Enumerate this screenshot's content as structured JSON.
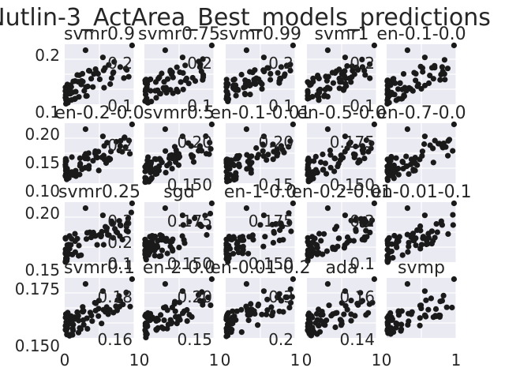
{
  "title": "Nutlin-3_ActArea_Best_models_predictions",
  "chart_data": {
    "type": "scatter",
    "title": "Nutlin-3_ActArea_Best_models_predictions",
    "grid": true,
    "x_ticks": [
      "0",
      "1"
    ],
    "panels": [
      {
        "title": "svmr0.9",
        "xlim": [
          0,
          1
        ],
        "ylim": [
          0.07,
          0.27
        ],
        "y_ticks_left": [
          "0.2",
          "0.1"
        ],
        "y_ticks_right": [
          "0.2",
          "0.1"
        ]
      },
      {
        "title": "svmr0.75",
        "xlim": [
          0,
          1
        ],
        "ylim": [
          0.07,
          0.27
        ],
        "y_ticks_left": [],
        "y_ticks_right": [
          "0.2",
          "0.1"
        ]
      },
      {
        "title": "svmr0.99",
        "xlim": [
          0,
          1
        ],
        "ylim": [
          0.07,
          0.27
        ],
        "y_ticks_left": [],
        "y_ticks_right": [
          "0.2",
          "0.1"
        ]
      },
      {
        "title": "svmr1",
        "xlim": [
          0,
          1
        ],
        "ylim": [
          0.07,
          0.27
        ],
        "y_ticks_left": [],
        "y_ticks_right": [
          "0.2",
          "0.1"
        ]
      },
      {
        "title": "en-0.1-0.0",
        "xlim": [
          0,
          1
        ],
        "ylim": [
          0.07,
          0.27
        ],
        "y_ticks_left": [],
        "y_ticks_right": []
      },
      {
        "title": "en-0.2-0.0",
        "xlim": [
          0,
          1
        ],
        "ylim": [
          0.1,
          0.225
        ],
        "y_ticks_left": [
          "0.20",
          "0.15",
          "0.10"
        ],
        "y_ticks_right": [
          "0.2"
        ]
      },
      {
        "title": "svmr0.5",
        "xlim": [
          0,
          1
        ],
        "ylim": [
          0.1,
          0.225
        ],
        "y_ticks_left": [],
        "y_ticks_right": [
          "0.20",
          "0.150"
        ]
      },
      {
        "title": "en-0.1-0.01",
        "xlim": [
          0,
          1
        ],
        "ylim": [
          0.1,
          0.225
        ],
        "y_ticks_left": [],
        "y_ticks_right": [
          "0.20",
          "0.15"
        ]
      },
      {
        "title": "en-0.5-0.0",
        "xlim": [
          0,
          1
        ],
        "ylim": [
          0.1,
          0.225
        ],
        "y_ticks_left": [],
        "y_ticks_right": [
          "0.175",
          "0.150"
        ]
      },
      {
        "title": "en-0.7-0.0",
        "xlim": [
          0,
          1
        ],
        "ylim": [
          0.1,
          0.225
        ],
        "y_ticks_left": [],
        "y_ticks_right": []
      },
      {
        "title": "svmr0.25",
        "xlim": [
          0,
          1
        ],
        "ylim": [
          0.12,
          0.21
        ],
        "y_ticks_left": [
          "0.20",
          "0.15"
        ],
        "y_ticks_right": [
          "0.3",
          "0.2",
          "0.1"
        ]
      },
      {
        "title": "sgd",
        "xlim": [
          0,
          1
        ],
        "ylim": [
          0.12,
          0.21
        ],
        "y_ticks_left": [],
        "y_ticks_right": [
          "0.175",
          "0.150"
        ]
      },
      {
        "title": "en-1-0.0",
        "xlim": [
          0,
          1
        ],
        "ylim": [
          0.12,
          0.21
        ],
        "y_ticks_left": [],
        "y_ticks_right": [
          "0.175",
          "0.150"
        ]
      },
      {
        "title": "en-0.2-0.01",
        "xlim": [
          0,
          1
        ],
        "ylim": [
          0.12,
          0.21
        ],
        "y_ticks_left": [],
        "y_ticks_right": [
          "0.2",
          "0.1"
        ]
      },
      {
        "title": "en-0.01-0.1",
        "xlim": [
          0,
          1
        ],
        "ylim": [
          0.12,
          0.21
        ],
        "y_ticks_left": [],
        "y_ticks_right": []
      },
      {
        "title": "svmr0.1",
        "xlim": [
          0,
          1
        ],
        "ylim": [
          0.135,
          0.182
        ],
        "y_ticks_left": [
          "0.175",
          "0.150"
        ],
        "y_ticks_right": [
          "0.18",
          "0.16"
        ]
      },
      {
        "title": "en-2-0.0",
        "xlim": [
          0,
          1
        ],
        "ylim": [
          0.135,
          0.182
        ],
        "y_ticks_left": [],
        "y_ticks_right": [
          "0.20",
          "0.15"
        ]
      },
      {
        "title": "en-0.01-0.2",
        "xlim": [
          0,
          1
        ],
        "ylim": [
          0.135,
          0.182
        ],
        "y_ticks_left": [],
        "y_ticks_right": [
          "0.3",
          "0.2"
        ]
      },
      {
        "title": "ada",
        "xlim": [
          0,
          1
        ],
        "ylim": [
          0.135,
          0.182
        ],
        "y_ticks_left": [],
        "y_ticks_right": [
          "0.16",
          "0.14"
        ]
      },
      {
        "title": "svmp",
        "xlim": [
          0,
          1
        ],
        "ylim": [
          0.135,
          0.182
        ],
        "y_ticks_left": [],
        "y_ticks_right": []
      }
    ]
  }
}
